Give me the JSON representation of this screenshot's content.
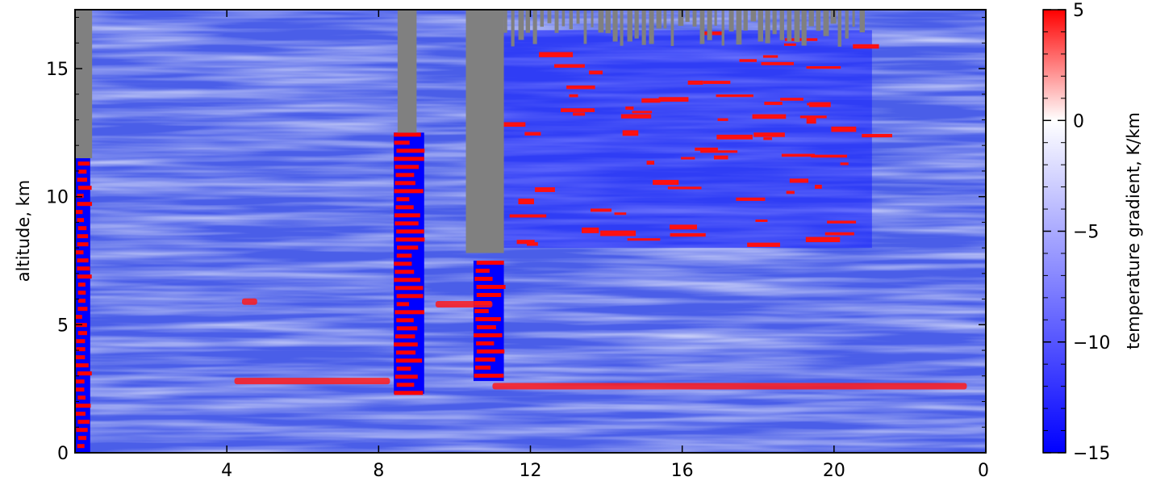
{
  "chart_data": {
    "type": "heatmap",
    "title": "",
    "xlabel": "",
    "ylabel": "altitude, km",
    "x_ticks": [
      "4",
      "8",
      "12",
      "16",
      "20",
      "0"
    ],
    "y_ticks": [
      "0",
      "5",
      "10",
      "15"
    ],
    "y_tick_values": [
      0,
      5,
      10,
      15
    ],
    "ylim": [
      0,
      17.3
    ],
    "x_range_hours": [
      0,
      24
    ],
    "x_tick_hours": [
      4,
      8,
      12,
      16,
      20,
      24
    ],
    "missing_data_color": "#808080",
    "colorbar": {
      "label": "temperature gradient, K/km",
      "range": [
        -15,
        5
      ],
      "ticks": [
        "5",
        "0",
        "−5",
        "−10",
        "−15"
      ],
      "tick_values": [
        5,
        0,
        -5,
        -10,
        -15
      ],
      "colormap": [
        "#0000ff",
        "#ffffff",
        "#ff0000"
      ]
    },
    "features": {
      "dominant_background_K_per_km": -10,
      "inversion_layers": [
        {
          "t_start_hours": 4.2,
          "t_end_hours": 8.3,
          "altitude_km": 2.8
        },
        {
          "t_start_hours": 11.0,
          "t_end_hours": 23.5,
          "altitude_km": 2.6
        },
        {
          "t_start_hours": 4.4,
          "t_end_hours": 4.8,
          "altitude_km": 5.9
        },
        {
          "t_start_hours": 9.5,
          "t_end_hours": 11.0,
          "altitude_km": 5.8
        }
      ],
      "cloud_gaps": [
        {
          "t_start_hours": 0.0,
          "t_end_hours": 0.45,
          "altitude_from_km": 11.5,
          "altitude_to_km": 17.3
        },
        {
          "t_start_hours": 8.5,
          "t_end_hours": 9.0,
          "altitude_from_km": 12.5,
          "altitude_to_km": 17.3
        },
        {
          "t_start_hours": 10.3,
          "t_end_hours": 11.3,
          "altitude_from_km": 7.8,
          "altitude_to_km": 17.3
        },
        {
          "t_start_hours": 11.3,
          "t_end_hours": 20.7,
          "altitude_from_km": 15.8,
          "altitude_to_km": 17.3
        }
      ],
      "unstable_columns": [
        {
          "t_start_hours": 0.0,
          "t_end_hours": 0.4,
          "altitude_from_km": 0.0,
          "altitude_to_km": 12.0
        },
        {
          "t_start_hours": 8.4,
          "t_end_hours": 9.2,
          "altitude_from_km": 2.3,
          "altitude_to_km": 12.5
        },
        {
          "t_start_hours": 10.5,
          "t_end_hours": 11.3,
          "altitude_from_km": 2.8,
          "altitude_to_km": 7.5
        }
      ],
      "upper_turbulent_region": {
        "t_start_hours": 11.2,
        "t_end_hours": 21.0,
        "altitude_from_km": 8.0,
        "altitude_to_km": 16.5
      }
    }
  }
}
